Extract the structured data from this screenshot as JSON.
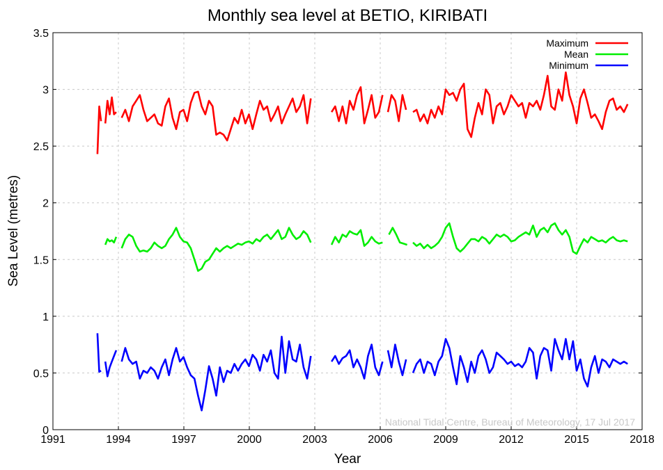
{
  "chart_data": {
    "type": "line",
    "title": "Monthly sea level at BETIO, KIRIBATI",
    "xlabel": "Year",
    "ylabel": "Sea Level (metres)",
    "xlim": [
      1991,
      2018
    ],
    "ylim": [
      0,
      3.5
    ],
    "xticks": [
      "1991",
      "1994",
      "1997",
      "2000",
      "2003",
      "2006",
      "2009",
      "2012",
      "2015",
      "2018"
    ],
    "yticks": [
      "0",
      "0.5",
      "1",
      "1.5",
      "2",
      "2.5",
      "3",
      "3.5"
    ],
    "grid": true,
    "legend_position": "top-right",
    "credit": "National Tidal Centre, Bureau of Meteorology, 17 Jul 2017",
    "series": [
      {
        "name": "Maximum",
        "color": "#ff0000",
        "segments": [
          {
            "start": 1993.04,
            "step": 0.0833,
            "values": [
              2.43,
              2.85,
              2.72
            ]
          },
          {
            "start": 1993.4,
            "step": 0.1,
            "values": [
              2.7,
              2.9,
              2.78,
              2.93,
              2.78,
              2.8
            ]
          },
          {
            "start": 1994.15,
            "step": 0.1667,
            "values": [
              2.75,
              2.82,
              2.72,
              2.85,
              2.9,
              2.95,
              2.82,
              2.72,
              2.75,
              2.78,
              2.7,
              2.68,
              2.85,
              2.92,
              2.75,
              2.65,
              2.8,
              2.82,
              2.72,
              2.88,
              2.97,
              2.98,
              2.85,
              2.78,
              2.9,
              2.85,
              2.6,
              2.62,
              2.6,
              2.55,
              2.65,
              2.75,
              2.7,
              2.82,
              2.7,
              2.78,
              2.65,
              2.78,
              2.9,
              2.82,
              2.85,
              2.72,
              2.78,
              2.85,
              2.7,
              2.78,
              2.85,
              2.92,
              2.8,
              2.85,
              2.95,
              2.7,
              2.92
            ]
          },
          {
            "start": 2003.77,
            "step": 0.1667,
            "values": [
              2.8,
              2.85,
              2.72,
              2.85,
              2.7,
              2.9,
              2.82,
              2.95,
              3.02,
              2.7,
              2.82,
              2.95,
              2.75,
              2.8,
              2.95
            ]
          },
          {
            "start": 2006.35,
            "step": 0.1667,
            "values": [
              2.8,
              2.95,
              2.9,
              2.72,
              2.95,
              2.82
            ]
          },
          {
            "start": 2007.5,
            "step": 0.1667,
            "values": [
              2.8,
              2.82,
              2.72,
              2.78,
              2.7,
              2.82,
              2.75,
              2.85,
              2.78,
              3.0,
              2.95,
              2.97,
              2.9,
              3.0,
              3.05,
              2.65,
              2.58,
              2.75,
              2.88,
              2.78,
              3.0,
              2.95,
              2.7,
              2.85,
              2.88,
              2.78,
              2.85,
              2.95,
              2.9,
              2.85,
              2.88,
              2.75,
              2.88,
              2.85,
              2.9,
              2.82,
              2.95,
              3.12,
              2.85,
              2.82,
              3.0,
              2.9,
              3.15,
              2.95,
              2.85,
              2.7,
              2.92,
              3.0,
              2.88,
              2.75,
              2.78,
              2.72,
              2.65,
              2.8,
              2.9,
              2.92,
              2.82,
              2.85,
              2.8,
              2.87
            ]
          }
        ]
      },
      {
        "name": "Mean",
        "color": "#00ee00",
        "segments": [
          {
            "start": 1993.4,
            "step": 0.1,
            "values": [
              1.63,
              1.68,
              1.66,
              1.67,
              1.65,
              1.7
            ]
          },
          {
            "start": 1994.15,
            "step": 0.1667,
            "values": [
              1.6,
              1.68,
              1.72,
              1.7,
              1.62,
              1.57,
              1.58,
              1.57,
              1.6,
              1.65,
              1.62,
              1.6,
              1.62,
              1.68,
              1.72,
              1.78,
              1.7,
              1.66,
              1.65,
              1.6,
              1.5,
              1.4,
              1.42,
              1.48,
              1.5,
              1.55,
              1.6,
              1.57,
              1.6,
              1.62,
              1.6,
              1.62,
              1.64,
              1.63,
              1.65,
              1.66,
              1.64,
              1.68,
              1.66,
              1.7,
              1.72,
              1.68,
              1.72,
              1.76,
              1.68,
              1.7,
              1.78,
              1.72,
              1.68,
              1.7,
              1.75,
              1.72,
              1.65
            ]
          },
          {
            "start": 2003.77,
            "step": 0.1667,
            "values": [
              1.63,
              1.7,
              1.65,
              1.72,
              1.7,
              1.75,
              1.73,
              1.72,
              1.76,
              1.62,
              1.65,
              1.7,
              1.66,
              1.64,
              1.65
            ]
          },
          {
            "start": 2006.4,
            "step": 0.1667,
            "values": [
              1.72,
              1.78,
              1.72,
              1.65,
              1.64,
              1.63
            ]
          },
          {
            "start": 2007.5,
            "step": 0.1667,
            "values": [
              1.65,
              1.62,
              1.64,
              1.6,
              1.63,
              1.6,
              1.62,
              1.65,
              1.7,
              1.78,
              1.82,
              1.7,
              1.6,
              1.57,
              1.6,
              1.64,
              1.68,
              1.68,
              1.66,
              1.7,
              1.68,
              1.64,
              1.68,
              1.72,
              1.7,
              1.72,
              1.7,
              1.66,
              1.67,
              1.7,
              1.72,
              1.74,
              1.72,
              1.8,
              1.7,
              1.76,
              1.78,
              1.74,
              1.8,
              1.82,
              1.76,
              1.72,
              1.76,
              1.7,
              1.57,
              1.55,
              1.62,
              1.68,
              1.65,
              1.7,
              1.68,
              1.66,
              1.67,
              1.65,
              1.68,
              1.7,
              1.67,
              1.66,
              1.67,
              1.66
            ]
          }
        ]
      },
      {
        "name": "Minimum",
        "color": "#0000ff",
        "segments": [
          {
            "start": 1993.04,
            "step": 0.0833,
            "values": [
              0.85,
              0.51,
              0.52
            ]
          },
          {
            "start": 1993.4,
            "step": 0.1,
            "values": [
              0.6,
              0.47,
              0.55,
              0.6,
              0.65,
              0.7
            ]
          },
          {
            "start": 1994.15,
            "step": 0.1667,
            "values": [
              0.6,
              0.72,
              0.62,
              0.58,
              0.6,
              0.45,
              0.52,
              0.5,
              0.55,
              0.52,
              0.45,
              0.55,
              0.62,
              0.48,
              0.62,
              0.72,
              0.6,
              0.64,
              0.55,
              0.48,
              0.45,
              0.3,
              0.17,
              0.35,
              0.56,
              0.45,
              0.3,
              0.55,
              0.42,
              0.52,
              0.5,
              0.58,
              0.52,
              0.58,
              0.62,
              0.56,
              0.66,
              0.62,
              0.52,
              0.66,
              0.6,
              0.7,
              0.5,
              0.45,
              0.82,
              0.5,
              0.78,
              0.62,
              0.6,
              0.75,
              0.55,
              0.45,
              0.65
            ]
          },
          {
            "start": 2003.77,
            "step": 0.1667,
            "values": [
              0.6,
              0.65,
              0.58,
              0.63,
              0.65,
              0.7,
              0.55,
              0.62,
              0.55,
              0.45,
              0.65,
              0.75,
              0.55,
              0.48,
              0.6
            ]
          },
          {
            "start": 2006.35,
            "step": 0.1667,
            "values": [
              0.7,
              0.55,
              0.75,
              0.6,
              0.48,
              0.62
            ]
          },
          {
            "start": 2007.5,
            "step": 0.1667,
            "values": [
              0.5,
              0.58,
              0.62,
              0.5,
              0.6,
              0.58,
              0.48,
              0.6,
              0.65,
              0.8,
              0.72,
              0.55,
              0.4,
              0.65,
              0.55,
              0.42,
              0.6,
              0.5,
              0.65,
              0.7,
              0.62,
              0.5,
              0.55,
              0.68,
              0.65,
              0.62,
              0.58,
              0.6,
              0.56,
              0.58,
              0.55,
              0.6,
              0.72,
              0.68,
              0.45,
              0.65,
              0.72,
              0.7,
              0.52,
              0.8,
              0.7,
              0.62,
              0.8,
              0.62,
              0.78,
              0.52,
              0.62,
              0.45,
              0.38,
              0.55,
              0.65,
              0.5,
              0.62,
              0.6,
              0.55,
              0.62,
              0.6,
              0.58,
              0.6,
              0.58
            ]
          }
        ]
      }
    ]
  }
}
